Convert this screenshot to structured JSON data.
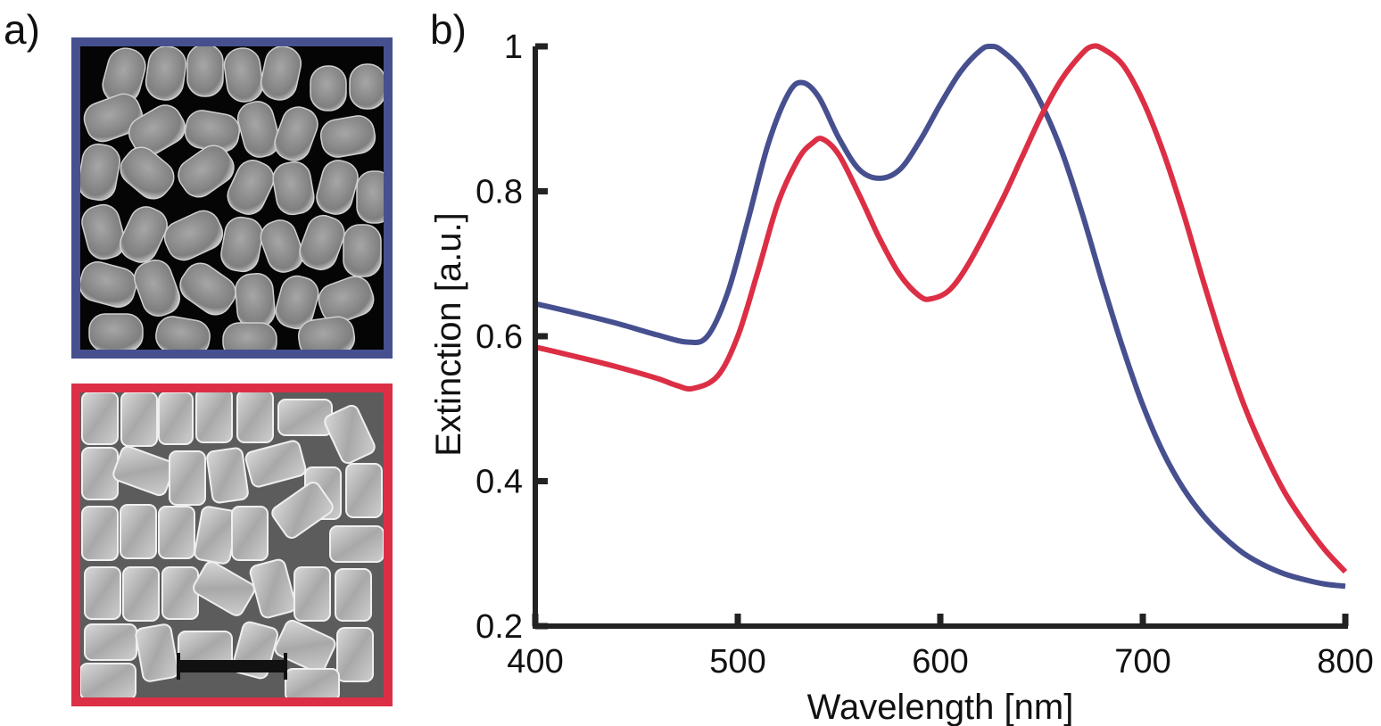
{
  "panels": {
    "a_label": "a)",
    "b_label": "b)"
  },
  "images": {
    "top": {
      "content": "SEM micrograph of rounded rod-like nanoparticles",
      "border_color": "#46508f"
    },
    "bottom": {
      "content": "SEM micrograph of faceted rectangular nanoparticles with scale bar",
      "border_color": "#dc2f45"
    }
  },
  "chart_data": {
    "type": "line",
    "title": "",
    "xlabel": "Wavelength [nm]",
    "ylabel": "Extinction [a.u.]",
    "xlim": [
      400,
      800
    ],
    "ylim": [
      0.2,
      1.0
    ],
    "xticks": [
      400,
      500,
      600,
      700,
      800
    ],
    "yticks": [
      0.2,
      0.4,
      0.6,
      0.8,
      1.0
    ],
    "xtick_labels": [
      "400",
      "500",
      "600",
      "700",
      "800"
    ],
    "ytick_labels": [
      "0.2",
      "0.4",
      "0.6",
      "0.8",
      "1"
    ],
    "grid": false,
    "series": [
      {
        "name": "blue",
        "color": "#46508f",
        "x": [
          400,
          420,
          440,
          460,
          475,
          485,
          495,
          505,
          515,
          525,
          532,
          540,
          550,
          560,
          570,
          580,
          590,
          600,
          610,
          620,
          625,
          630,
          640,
          650,
          660,
          670,
          680,
          690,
          700,
          710,
          720,
          730,
          740,
          750,
          760,
          770,
          780,
          790,
          800
        ],
        "y": [
          0.645,
          0.632,
          0.618,
          0.602,
          0.592,
          0.6,
          0.66,
          0.76,
          0.865,
          0.935,
          0.95,
          0.93,
          0.873,
          0.83,
          0.818,
          0.83,
          0.87,
          0.92,
          0.965,
          0.995,
          1.0,
          0.995,
          0.968,
          0.92,
          0.855,
          0.77,
          0.675,
          0.585,
          0.505,
          0.44,
          0.39,
          0.352,
          0.323,
          0.3,
          0.284,
          0.272,
          0.264,
          0.258,
          0.255
        ]
      },
      {
        "name": "red",
        "color": "#dc2f45",
        "x": [
          400,
          420,
          440,
          460,
          470,
          478,
          490,
          500,
          510,
          520,
          530,
          537,
          542,
          550,
          560,
          570,
          580,
          590,
          596,
          605,
          615,
          630,
          640,
          650,
          660,
          670,
          675,
          680,
          690,
          700,
          710,
          720,
          730,
          740,
          750,
          760,
          770,
          780,
          790,
          800
        ],
        "y": [
          0.585,
          0.572,
          0.558,
          0.542,
          0.532,
          0.528,
          0.545,
          0.6,
          0.69,
          0.785,
          0.845,
          0.867,
          0.872,
          0.85,
          0.795,
          0.735,
          0.685,
          0.655,
          0.652,
          0.665,
          0.705,
          0.785,
          0.845,
          0.905,
          0.955,
          0.99,
          1.0,
          0.997,
          0.975,
          0.925,
          0.855,
          0.77,
          0.675,
          0.585,
          0.505,
          0.44,
          0.385,
          0.342,
          0.305,
          0.275
        ]
      }
    ]
  }
}
